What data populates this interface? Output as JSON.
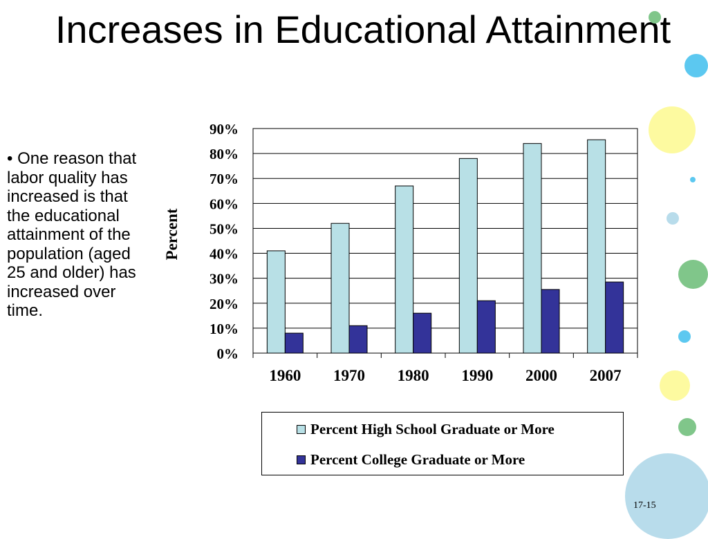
{
  "slide": {
    "title": "Increases in Educational Attainment",
    "bullet": "•  One reason that labor quality has increased is that the educational attainment of the population (aged 25 and older) has increased over time.",
    "page_number": "17-15"
  },
  "decor_colors": {
    "green": "#80c68a",
    "blue": "#5cc8f0",
    "yellow": "#fdfaa0",
    "light_blue": "#b8dceb"
  },
  "chart_data": {
    "type": "bar",
    "categories": [
      "1960",
      "1970",
      "1980",
      "1990",
      "2000",
      "2007"
    ],
    "series": [
      {
        "name": "Percent High School Graduate or More",
        "color": "#b8e0e6",
        "values": [
          41,
          52,
          67,
          78,
          84,
          85.5
        ]
      },
      {
        "name": "Percent College Graduate or More",
        "color": "#333399",
        "values": [
          8,
          11,
          16,
          21,
          25.5,
          28.5
        ]
      }
    ],
    "ylabel": "Percent",
    "yticks": [
      "0%",
      "10%",
      "20%",
      "30%",
      "40%",
      "50%",
      "60%",
      "70%",
      "80%",
      "90%"
    ],
    "ylim": [
      0,
      90
    ],
    "grid": true,
    "legend": "bottom"
  }
}
